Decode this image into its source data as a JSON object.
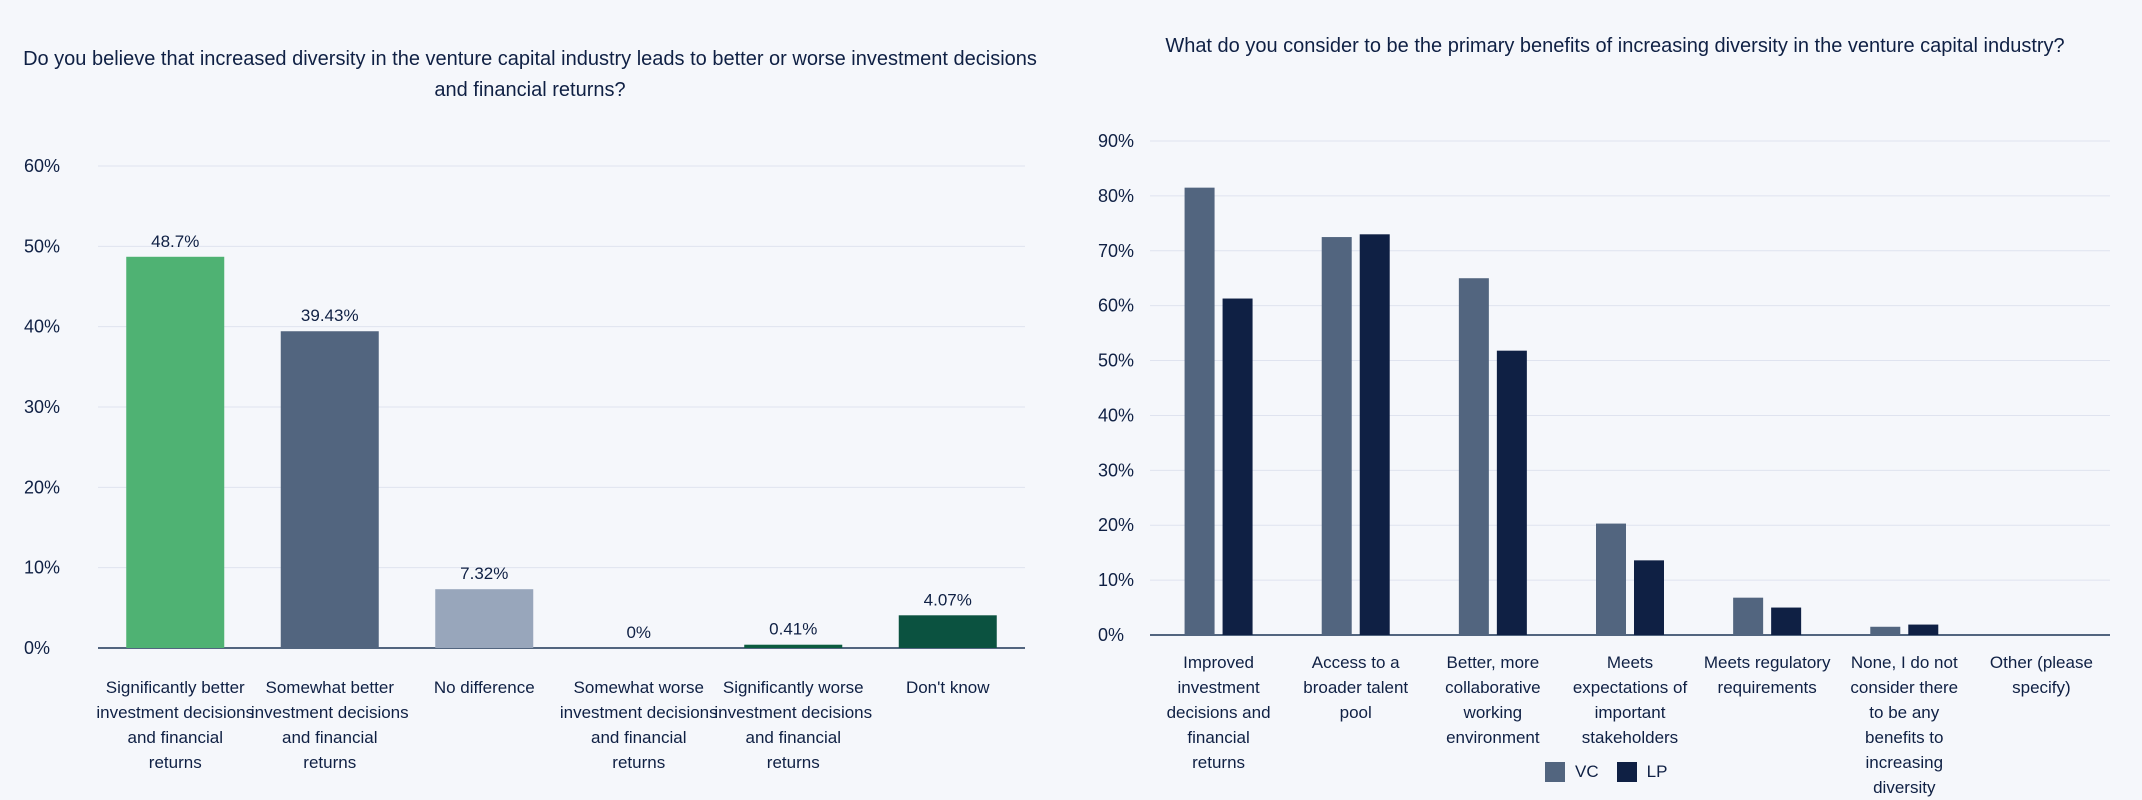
{
  "chart_data": [
    {
      "type": "bar",
      "title": "Do you believe that increased diversity in the venture capital industry leads to better or worse investment decisions and financial returns?",
      "categories": [
        "Significantly better investment decisions and financial returns",
        "Somewhat better investment decisions and financial returns",
        "No difference",
        "Somewhat worse investment decisions and financial returns",
        "Significantly worse investment decisions and financial returns",
        "Don't know"
      ],
      "values": [
        48.7,
        39.43,
        7.32,
        0,
        0.41,
        4.07
      ],
      "value_labels": [
        "48.7%",
        "39.43%",
        "7.32%",
        "0%",
        "0.41%",
        "4.07%"
      ],
      "colors": [
        "#4fb273",
        "#52657f",
        "#98a6bb",
        "#0f2044",
        "#0b5c3f",
        "#0b5240"
      ],
      "ylim": [
        0,
        60
      ],
      "yticks": [
        "0%",
        "10%",
        "20%",
        "30%",
        "40%",
        "50%",
        "60%"
      ],
      "xlabel": "",
      "ylabel": "",
      "grid": true
    },
    {
      "type": "bar",
      "title": "What do you consider to be the primary benefits of increasing diversity in the venture capital industry?",
      "categories": [
        "Improved investment decisions and financial returns",
        "Access to a broader talent pool",
        "Better, more collaborative working environment",
        "Meets expectations of important stakeholders",
        "Meets regulatory requirements",
        "None, I do not consider there to be any benefits to increasing diversity",
        "Other (please specify)"
      ],
      "series": [
        {
          "name": "VC",
          "color": "#52657f",
          "values": [
            81.5,
            72.5,
            65,
            20.3,
            6.8,
            1.5,
            0
          ]
        },
        {
          "name": "LP",
          "color": "#0f2044",
          "values": [
            61.3,
            73,
            51.8,
            13.6,
            5,
            1.9,
            0
          ]
        }
      ],
      "ylim": [
        0,
        90
      ],
      "yticks": [
        "0%",
        "10%",
        "20%",
        "30%",
        "40%",
        "50%",
        "60%",
        "70%",
        "80%",
        "90%"
      ],
      "legend_position": "bottom",
      "xlabel": "",
      "ylabel": "",
      "grid": true
    }
  ]
}
